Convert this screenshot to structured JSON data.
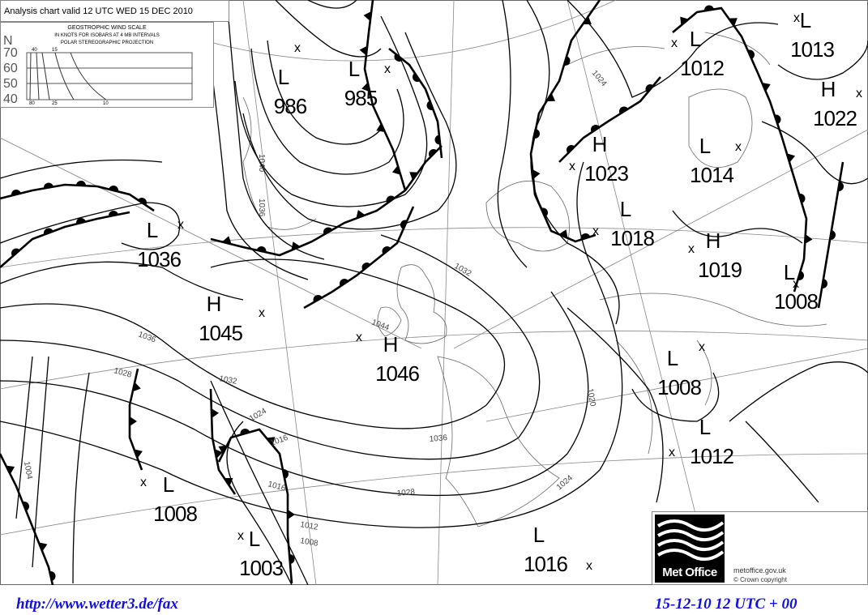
{
  "chart_title": "Analysis chart valid 12 UTC WED 15 DEC 2010",
  "wind_scale": {
    "heading": "GEOSTROPHIC WIND SCALE",
    "subheading": "IN KNOTS FOR ISOBARS AT  4 MB INTERVALS",
    "projection": "POLAR STEREOGRAPHIC PROJECTION",
    "latitude_label": "N",
    "latitudes": [
      "70",
      "60",
      "50",
      "40"
    ],
    "top_speeds": [
      "40",
      "15"
    ],
    "bottom_speeds": [
      "80",
      "25",
      "10"
    ]
  },
  "pressure_centers": [
    {
      "type": "L",
      "value": "986"
    },
    {
      "type": "L",
      "value": "985"
    },
    {
      "type": "L",
      "value": "1012"
    },
    {
      "type": "L",
      "value": "1013"
    },
    {
      "type": "H",
      "value": "1022"
    },
    {
      "type": "H",
      "value": "1023"
    },
    {
      "type": "L",
      "value": "1014"
    },
    {
      "type": "L",
      "value": "1018"
    },
    {
      "type": "H",
      "value": "1019"
    },
    {
      "type": "L",
      "value": "1008"
    },
    {
      "type": "L",
      "value": "1036"
    },
    {
      "type": "H",
      "value": "1045"
    },
    {
      "type": "H",
      "value": "1046"
    },
    {
      "type": "L",
      "value": "1008"
    },
    {
      "type": "L",
      "value": "1012"
    },
    {
      "type": "L",
      "value": "1008"
    },
    {
      "type": "L",
      "value": "1003"
    },
    {
      "type": "L",
      "value": "1016"
    }
  ],
  "isobar_labels": [
    "1036",
    "1028",
    "1032",
    "1024",
    "1016",
    "1012",
    "1008",
    "1004",
    "1036",
    "1028",
    "1024",
    "1020",
    "1044",
    "1032",
    "1024",
    "1016",
    "1040",
    "1036"
  ],
  "logo": {
    "name": "Met Office",
    "site": "metoffice.gov.uk",
    "copyright": "©  Crown copyright"
  },
  "footer": {
    "url": "http://www.wetter3.de/fax",
    "valid": "15-12-10 12 UTC + 00"
  },
  "colors": {
    "footer_text": "#1010e0",
    "lines": "#000000",
    "grid": "#777777"
  }
}
